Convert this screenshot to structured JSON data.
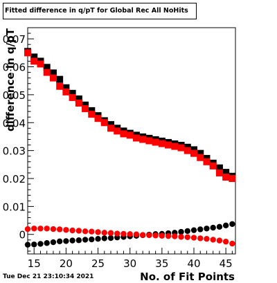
{
  "timestamp": "Tue Dec 21 23:10:34 2021",
  "colors": {
    "black_series": "#000000",
    "red_series": "#ff0000",
    "frame": "#000000"
  },
  "chart_data": {
    "type": "scatter",
    "title": "Fitted difference in q/pT  for Global Rec All NoHits",
    "xlabel": "No. of Fit Points",
    "ylabel": "difference in q/pT",
    "xlim": [
      14,
      46.5
    ],
    "ylim": [
      -0.007,
      0.074
    ],
    "x_ticks": [
      15,
      20,
      25,
      30,
      35,
      40,
      45
    ],
    "y_ticks": [
      0,
      0.01,
      0.02,
      0.03,
      0.04,
      0.05,
      0.06,
      0.07
    ],
    "y_tick_labels": [
      "0",
      "0.01",
      "0.02",
      "0.03",
      "0.04",
      "0.05",
      "0.06",
      "0.07"
    ],
    "grid": false,
    "legend": "none",
    "x": [
      14,
      15,
      16,
      17,
      18,
      19,
      20,
      21,
      22,
      23,
      24,
      25,
      26,
      27,
      28,
      29,
      30,
      31,
      32,
      33,
      34,
      35,
      36,
      37,
      38,
      39,
      40,
      41,
      42,
      43,
      44,
      45,
      46
    ],
    "series": [
      {
        "marker": "square",
        "color": "#000000",
        "values": [
          0.0655,
          0.0635,
          0.062,
          0.0598,
          0.0578,
          0.0555,
          0.0525,
          0.0505,
          0.0485,
          0.0463,
          0.0443,
          0.0425,
          0.0407,
          0.0393,
          0.038,
          0.037,
          0.0362,
          0.0355,
          0.0349,
          0.0344,
          0.0339,
          0.0334,
          0.0329,
          0.0324,
          0.0319,
          0.0312,
          0.0303,
          0.029,
          0.0272,
          0.0255,
          0.0238,
          0.0222,
          0.0208
        ]
      },
      {
        "marker": "square",
        "color": "#ff0000",
        "values": [
          0.065,
          0.062,
          0.061,
          0.058,
          0.056,
          0.053,
          0.051,
          0.049,
          0.047,
          0.045,
          0.043,
          0.0415,
          0.04,
          0.038,
          0.037,
          0.036,
          0.0355,
          0.0345,
          0.034,
          0.0335,
          0.033,
          0.0325,
          0.032,
          0.0315,
          0.031,
          0.03,
          0.029,
          0.0275,
          0.026,
          0.0245,
          0.022,
          0.0205,
          0.02
        ]
      },
      {
        "marker": "circle",
        "color": "#000000",
        "values": [
          -0.0037,
          -0.0036,
          -0.0034,
          -0.0031,
          -0.0028,
          -0.0025,
          -0.0024,
          -0.0022,
          -0.0021,
          -0.0019,
          -0.0018,
          -0.0016,
          -0.0014,
          -0.0013,
          -0.0011,
          -0.0009,
          -0.0007,
          -0.0005,
          -0.0003,
          -0.0001,
          0.0001,
          0.0002,
          0.0004,
          0.0006,
          0.0009,
          0.0012,
          0.0015,
          0.0018,
          0.0021,
          0.0024,
          0.0027,
          0.0032,
          0.0037
        ]
      },
      {
        "marker": "circle",
        "color": "#ff0000",
        "values": [
          0.0019,
          0.0021,
          0.0021,
          0.0021,
          0.0019,
          0.0018,
          0.0016,
          0.0014,
          0.0013,
          0.0011,
          0.001,
          0.0008,
          0.0006,
          0.0005,
          0.0003,
          0.0002,
          0.0001,
          0.0,
          -0.0002,
          -0.0003,
          -0.0004,
          -0.0005,
          -0.0006,
          -0.0007,
          -0.0009,
          -0.001,
          -0.0012,
          -0.0014,
          -0.0016,
          -0.0019,
          -0.0022,
          -0.0026,
          -0.0033
        ]
      }
    ]
  }
}
